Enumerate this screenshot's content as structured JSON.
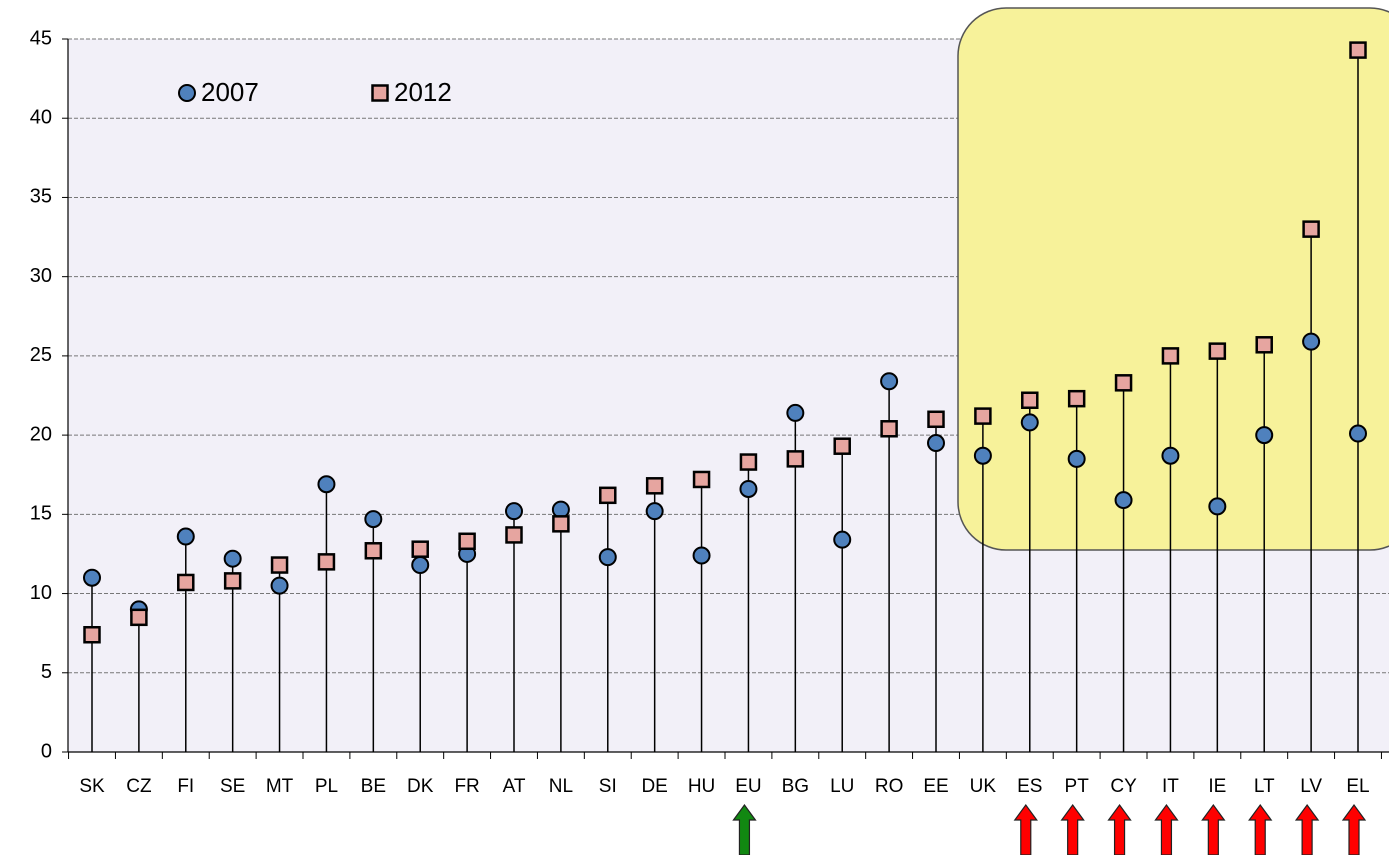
{
  "chart_data": {
    "type": "dot-range",
    "categories": [
      "SK",
      "CZ",
      "FI",
      "SE",
      "MT",
      "PL",
      "BE",
      "DK",
      "FR",
      "AT",
      "NL",
      "SI",
      "DE",
      "HU",
      "EU",
      "BG",
      "LU",
      "RO",
      "EE",
      "UK",
      "ES",
      "PT",
      "CY",
      "IT",
      "IE",
      "LT",
      "LV",
      "EL"
    ],
    "series": [
      {
        "name": "2007",
        "color": "#4f81bd",
        "marker": "circle",
        "values": [
          11.0,
          9.0,
          13.6,
          12.2,
          10.5,
          16.9,
          14.7,
          11.8,
          12.5,
          15.2,
          15.3,
          12.3,
          15.2,
          12.4,
          16.6,
          21.4,
          13.4,
          23.4,
          19.5,
          18.7,
          20.8,
          18.5,
          15.9,
          18.7,
          15.5,
          20.0,
          25.9,
          20.1
        ]
      },
      {
        "name": "2012",
        "color": "#e6a5a0",
        "marker": "square",
        "values": [
          7.4,
          8.5,
          10.7,
          10.8,
          11.8,
          12.0,
          12.7,
          12.8,
          13.3,
          13.7,
          14.4,
          16.2,
          16.8,
          17.2,
          18.3,
          18.5,
          19.3,
          20.4,
          21.0,
          21.2,
          22.2,
          22.3,
          23.3,
          25.0,
          25.3,
          25.7,
          33.0,
          44.3
        ]
      }
    ],
    "ylim": [
      0,
      45
    ],
    "yticks": [
      0,
      5,
      10,
      15,
      20,
      25,
      30,
      35,
      40,
      45
    ],
    "grid": true
  }
}
